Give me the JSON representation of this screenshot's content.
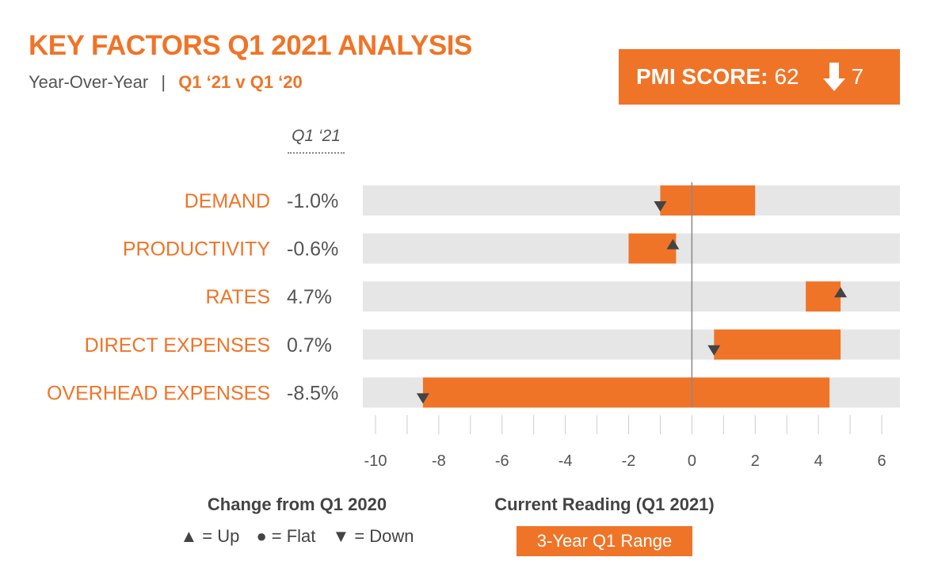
{
  "header": {
    "title": "KEY FACTORS Q1 2021 ANALYSIS",
    "subtitle_period": "Year-Over-Year",
    "subtitle_separator": "|",
    "subtitle_compare": "Q1 ‘21 v Q1 ‘20"
  },
  "pmi": {
    "label": "PMI SCORE:",
    "score": "62",
    "change": "7",
    "direction": "down"
  },
  "column_header": "Q1 ‘21",
  "legend": {
    "change_title": "Change from Q1 2020",
    "up_label": "= Up",
    "flat_label": "= Flat",
    "down_label": "= Down",
    "current_title": "Current Reading (Q1 2021)",
    "range_label": "3-Year Q1 Range"
  },
  "colors": {
    "accent": "#f07427",
    "track": "#e6e6e6",
    "marker": "#444444",
    "text": "#555555"
  },
  "chart_data": {
    "type": "bar",
    "orientation": "horizontal-range",
    "xlim": [
      -10,
      6
    ],
    "xticks": [
      -10,
      -8,
      -6,
      -4,
      -2,
      0,
      2,
      4,
      6
    ],
    "grid": false,
    "categories": [
      "DEMAND",
      "PRODUCTIVITY",
      "RATES",
      "DIRECT EXPENSES",
      "OVERHEAD EXPENSES"
    ],
    "current_values_label": [
      "-1.0%",
      "-0.6%",
      "4.7%",
      "0.7%",
      "-8.5%"
    ],
    "current_values": [
      -1.0,
      -0.6,
      4.7,
      0.7,
      -8.5
    ],
    "range_min": [
      -1.0,
      -2.0,
      3.6,
      0.7,
      -8.5
    ],
    "range_max": [
      2.0,
      -0.5,
      4.7,
      4.7,
      4.35
    ],
    "change": [
      "down",
      "up",
      "up",
      "down",
      "down"
    ]
  }
}
